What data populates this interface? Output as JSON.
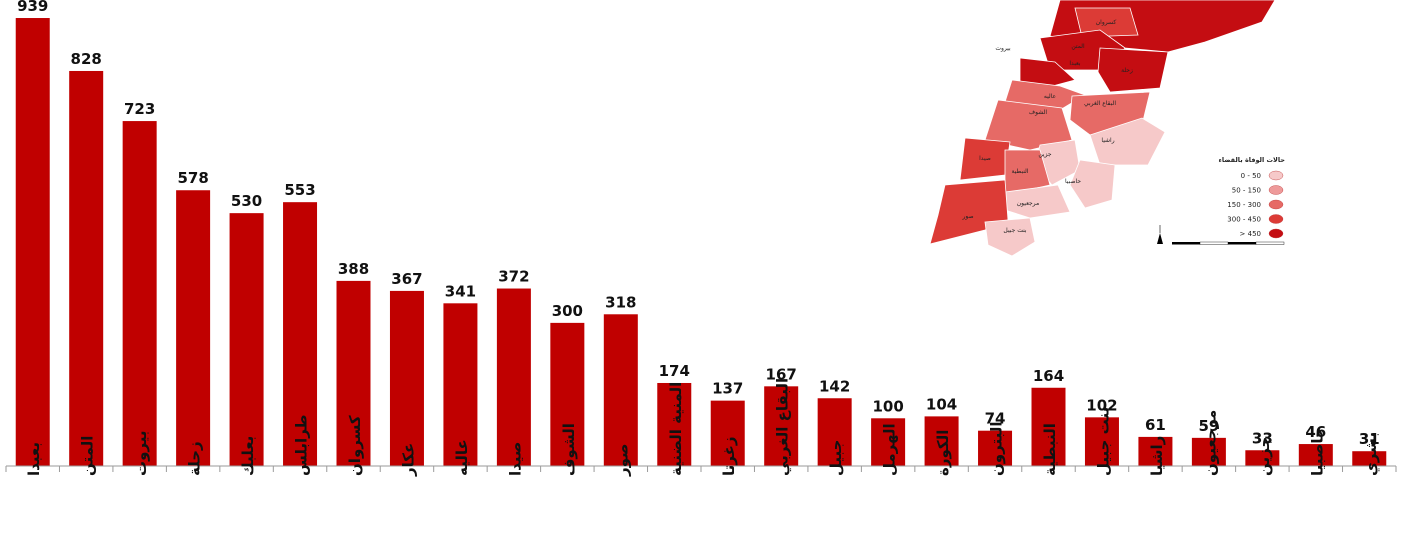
{
  "chart_data": {
    "type": "bar",
    "categories": [
      "بعبدا",
      "المتن",
      "بيروت",
      "زحلة",
      "بعلبك",
      "طرابلس",
      "كسروان",
      "عكار",
      "عاليه",
      "صيدا",
      "الشوف",
      "صور",
      "المنية الضنية",
      "زغرتا",
      "البقاع الغربي",
      "جبيل",
      "الهرمل",
      "الكورة",
      "البترون",
      "النبطية",
      "بنت جبيل",
      "راشيا",
      "مرجعيون",
      "جزين",
      "حاصبيا",
      "بشري"
    ],
    "values": [
      939,
      828,
      723,
      578,
      530,
      553,
      388,
      367,
      341,
      372,
      300,
      318,
      174,
      137,
      167,
      142,
      100,
      104,
      74,
      164,
      102,
      61,
      59,
      33,
      46,
      31
    ],
    "ylim": [
      0,
      960
    ],
    "bar_color": "#c00000",
    "axis_color": "#9a9a9a",
    "grid": false
  },
  "map": {
    "district_labels": [
      "كسروان",
      "بيروت",
      "المتن",
      "بعبدا",
      "زحلة",
      "عاليه",
      "البقاع الغربي",
      "الشوف",
      "راشيا",
      "جزين",
      "صيدا",
      "النبطية",
      "حاصبيا",
      "مرجعيون",
      "صور",
      "بنت جبيل"
    ],
    "legend": {
      "title": "حالات الوفاة بالقضاء",
      "classes": [
        {
          "label": "0 - 50",
          "color": "#f6c9c9"
        },
        {
          "label": "50 - 150",
          "color": "#ee9a9a"
        },
        {
          "label": "150 - 300",
          "color": "#e66a66"
        },
        {
          "label": "300 - 450",
          "color": "#dc3b36"
        },
        {
          "label": "> 450",
          "color": "#c40d12"
        }
      ]
    }
  }
}
